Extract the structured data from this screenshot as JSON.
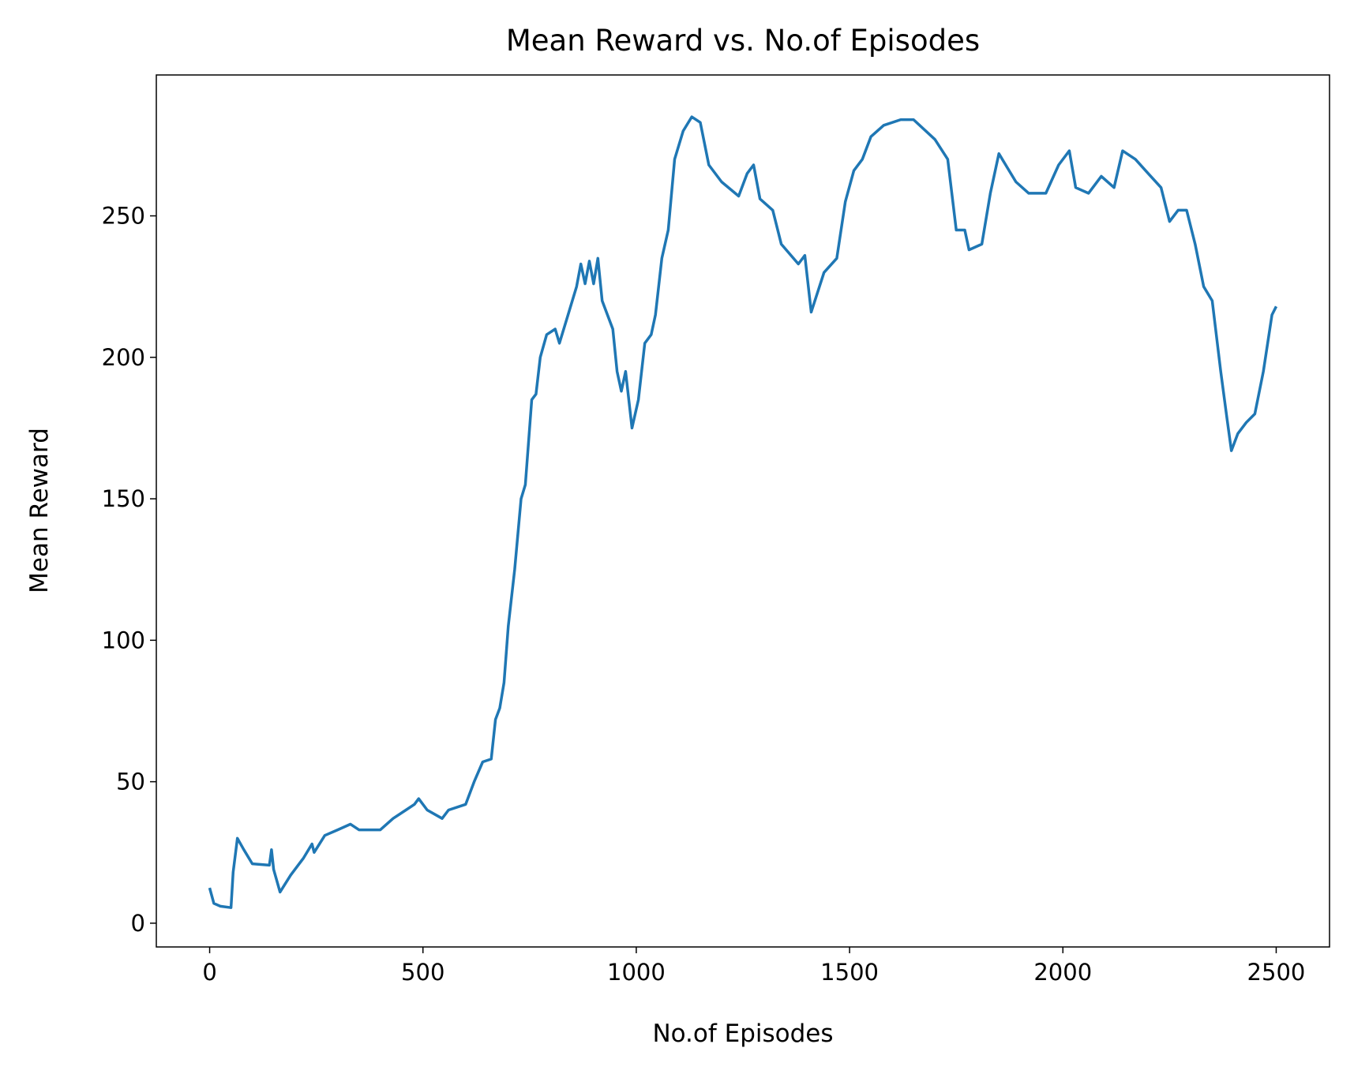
{
  "chart_data": {
    "type": "line",
    "title": "Mean Reward vs. No.of Episodes",
    "x_label": "No.of Episodes",
    "y_label": "Mean Reward",
    "x": [
      0,
      10,
      25,
      50,
      55,
      65,
      80,
      100,
      140,
      145,
      150,
      165,
      190,
      220,
      240,
      245,
      270,
      300,
      330,
      350,
      400,
      430,
      460,
      480,
      490,
      510,
      545,
      560,
      600,
      620,
      640,
      660,
      670,
      680,
      690,
      700,
      715,
      730,
      740,
      755,
      765,
      775,
      790,
      810,
      820,
      840,
      860,
      870,
      880,
      890,
      900,
      910,
      920,
      945,
      955,
      965,
      975,
      990,
      1005,
      1020,
      1035,
      1045,
      1060,
      1075,
      1090,
      1110,
      1130,
      1150,
      1170,
      1200,
      1240,
      1260,
      1275,
      1290,
      1320,
      1340,
      1380,
      1395,
      1410,
      1440,
      1470,
      1490,
      1510,
      1530,
      1550,
      1580,
      1620,
      1650,
      1700,
      1730,
      1750,
      1770,
      1780,
      1810,
      1830,
      1850,
      1870,
      1890,
      1920,
      1960,
      1990,
      2015,
      2030,
      2060,
      2090,
      2120,
      2140,
      2170,
      2200,
      2230,
      2250,
      2270,
      2290,
      2310,
      2330,
      2350,
      2370,
      2385,
      2395,
      2410,
      2430,
      2450,
      2470,
      2490,
      2500
    ],
    "series": [
      {
        "name": "Mean Reward",
        "color": "#1f77b4",
        "values": [
          12.5,
          7,
          6,
          5.5,
          18,
          30,
          26,
          21,
          20.5,
          26,
          19,
          11,
          17,
          23,
          28,
          25,
          31,
          33,
          35,
          33,
          33,
          37,
          40,
          42,
          44,
          40,
          37,
          40,
          42,
          50,
          57,
          58,
          72,
          76,
          85,
          105,
          125,
          150,
          155,
          185,
          187,
          200,
          208,
          210,
          205,
          215,
          225,
          233,
          226,
          234,
          226,
          235,
          220,
          210,
          195,
          188,
          195,
          175,
          185,
          205,
          208,
          215,
          235,
          245,
          270,
          280,
          285,
          283,
          268,
          262,
          257,
          265,
          268,
          256,
          252,
          240,
          233,
          236,
          216,
          230,
          235,
          255,
          266,
          270,
          278,
          282,
          284,
          284,
          277,
          270,
          245,
          245,
          238,
          240,
          258,
          272,
          267,
          262,
          258,
          258,
          268,
          273,
          260,
          258,
          264,
          260,
          273,
          270,
          265,
          260,
          248,
          252,
          252,
          240,
          225,
          220,
          195,
          178,
          167,
          173,
          177,
          180,
          195,
          215,
          218
        ]
      }
    ],
    "xlim": [
      -125,
      2625
    ],
    "ylim": [
      -8.4,
      299.8
    ],
    "xticks": [
      0,
      500,
      1000,
      1500,
      2000,
      2500
    ],
    "yticks": [
      0,
      50,
      100,
      150,
      200,
      250
    ]
  }
}
